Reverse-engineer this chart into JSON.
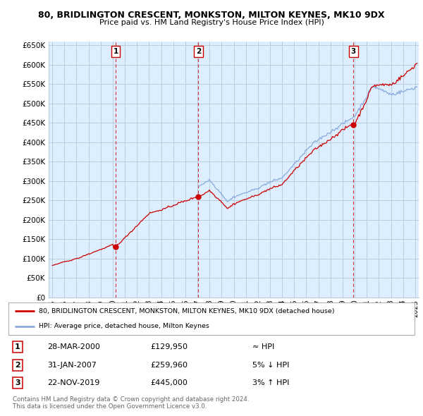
{
  "title1": "80, BRIDLINGTON CRESCENT, MONKSTON, MILTON KEYNES, MK10 9DX",
  "title2": "Price paid vs. HM Land Registry's House Price Index (HPI)",
  "ylim": [
    0,
    660000
  ],
  "yticks": [
    0,
    50000,
    100000,
    150000,
    200000,
    250000,
    300000,
    350000,
    400000,
    450000,
    500000,
    550000,
    600000,
    650000
  ],
  "xlim_start": 1994.7,
  "xlim_end": 2025.3,
  "sale_dates": [
    2000.24,
    2007.08,
    2019.9
  ],
  "sale_prices": [
    129950,
    259960,
    445000
  ],
  "sale_labels": [
    "1",
    "2",
    "3"
  ],
  "legend_line1": "80, BRIDLINGTON CRESCENT, MONKSTON, MILTON KEYNES, MK10 9DX (detached house)",
  "legend_line2": "HPI: Average price, detached house, Milton Keynes",
  "table_rows": [
    {
      "num": "1",
      "date": "28-MAR-2000",
      "price": "£129,950",
      "hpi": "≈ HPI"
    },
    {
      "num": "2",
      "date": "31-JAN-2007",
      "price": "£259,960",
      "hpi": "5% ↓ HPI"
    },
    {
      "num": "3",
      "date": "22-NOV-2019",
      "price": "£445,000",
      "hpi": "3% ↑ HPI"
    }
  ],
  "footer": "Contains HM Land Registry data © Crown copyright and database right 2024.\nThis data is licensed under the Open Government Licence v3.0.",
  "sale_color": "#cc0000",
  "hpi_color": "#88aadd",
  "chart_bg": "#ddeeff",
  "grid_color": "#bbccdd",
  "background_color": "#ffffff"
}
